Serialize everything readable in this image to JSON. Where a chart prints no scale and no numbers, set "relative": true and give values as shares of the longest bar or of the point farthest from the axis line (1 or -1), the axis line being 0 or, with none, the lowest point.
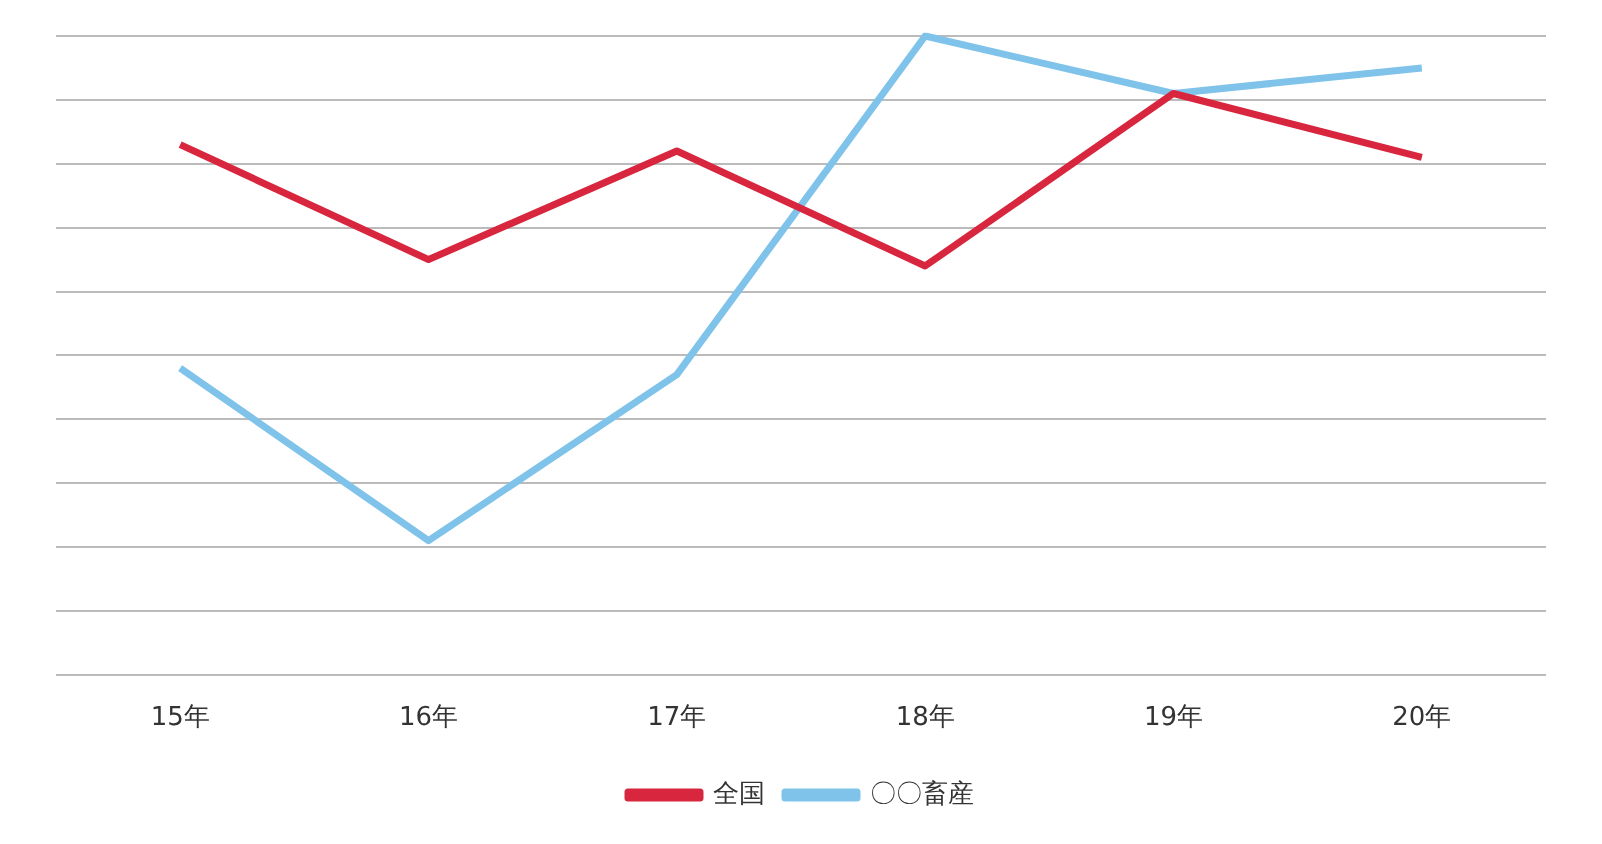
{
  "chart_data": {
    "type": "line",
    "relative": true,
    "categories": [
      "15年",
      "16年",
      "17年",
      "18年",
      "19年",
      "20年"
    ],
    "series": [
      {
        "name": "全国",
        "color": "#d7263d",
        "values": [
          0.83,
          0.65,
          0.82,
          0.64,
          0.91,
          0.81
        ]
      },
      {
        "name": "〇〇畜産",
        "color": "#7fc3ea",
        "values": [
          0.48,
          0.21,
          0.47,
          1.0,
          0.91,
          0.95
        ]
      }
    ],
    "grid": "y",
    "legend": "bottom",
    "marker": "none"
  }
}
